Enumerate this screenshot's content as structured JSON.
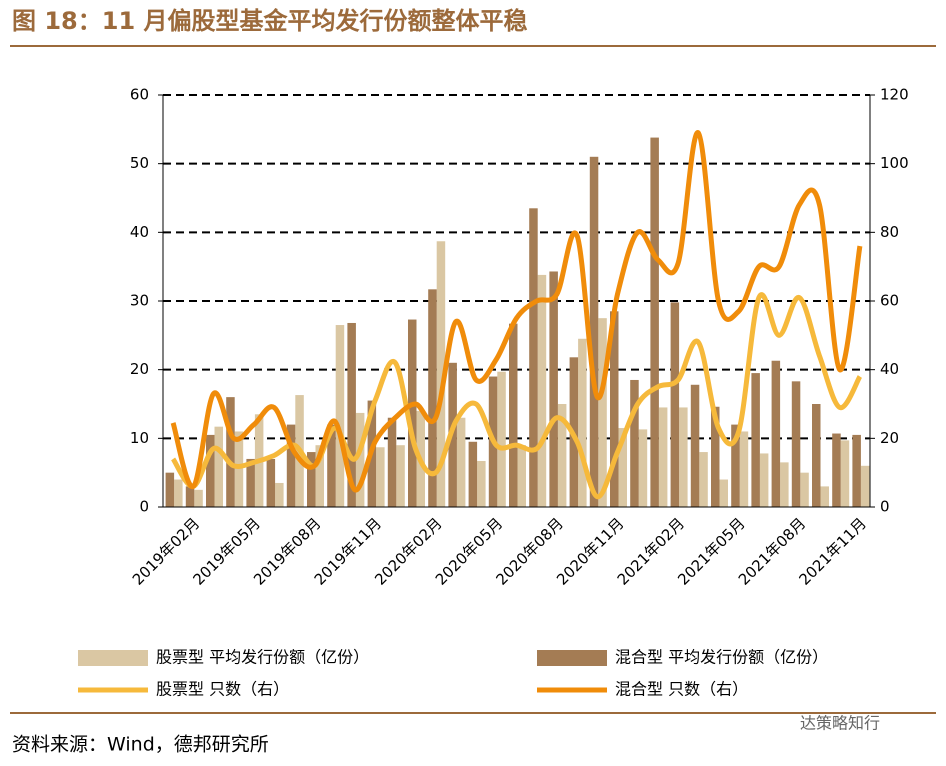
{
  "title": "图 18：11 月偏股型基金平均发行份额整体平稳",
  "source": "资料来源：Wind，德邦研究所",
  "watermark": "达策略知行",
  "chart_data": {
    "type": "bar_line",
    "categories": [
      null,
      "2019年02月",
      null,
      null,
      "2019年05月",
      null,
      null,
      "2019年08月",
      null,
      null,
      "2019年11月",
      null,
      null,
      "2020年02月",
      null,
      null,
      "2020年05月",
      null,
      null,
      "2020年08月",
      null,
      null,
      "2020年11月",
      null,
      null,
      "2021年02月",
      null,
      null,
      "2021年05月",
      null,
      null,
      "2021年08月",
      null,
      null,
      "2021年11月"
    ],
    "series": [
      {
        "name": "股票型 平均发行份额（亿份）",
        "kind": "bar",
        "axis": "y",
        "color": "#dac7a3",
        "values": [
          4,
          2.5,
          11.7,
          11,
          13.5,
          3.5,
          16.3,
          9,
          26.5,
          13.7,
          8.7,
          9,
          14,
          38.7,
          13,
          6.7,
          19.7,
          9,
          33.8,
          15,
          24.5,
          27.5,
          11.5,
          11.3,
          14.5,
          14.5,
          8,
          4,
          11,
          7.8,
          6.5,
          5,
          3,
          9.7,
          6
        ]
      },
      {
        "name": "混合型 平均发行份额（亿份）",
        "kind": "bar",
        "axis": "y",
        "color": "#a47c54",
        "values": [
          5,
          3,
          10.5,
          16,
          7,
          7,
          12,
          8,
          12,
          26.8,
          15.5,
          13,
          27.3,
          31.7,
          21,
          9.5,
          19,
          26.7,
          43.5,
          34.3,
          21.8,
          51,
          28.5,
          18.5,
          53.8,
          29.8,
          17.8,
          14.6,
          12,
          19.5,
          21.3,
          18.3,
          15,
          10.7,
          10.5
        ]
      },
      {
        "name": "股票型 只数（右）",
        "kind": "line",
        "axis": "y2",
        "color": "#f6b93b",
        "values": [
          14,
          6,
          17,
          12,
          13,
          15,
          18,
          12,
          23,
          14,
          31,
          42,
          17,
          10,
          25,
          30,
          18,
          18,
          17,
          26,
          19,
          3,
          16,
          30,
          35,
          37,
          48,
          23,
          22,
          61,
          50,
          61,
          44,
          29,
          38
        ]
      },
      {
        "name": "混合型 只数（右）",
        "kind": "line",
        "axis": "y2",
        "color": "#f08c0a",
        "values": [
          24.5,
          6,
          33,
          20,
          24,
          29,
          16,
          12,
          25,
          5,
          19,
          26,
          30,
          26,
          54,
          37,
          43,
          55,
          60,
          62,
          79,
          32,
          62,
          80,
          72,
          71,
          109,
          60,
          57,
          70,
          70,
          88,
          88,
          40,
          76
        ]
      }
    ],
    "ylim": [
      0,
      60
    ],
    "yticks": [
      0,
      10,
      20,
      30,
      40,
      50,
      60
    ],
    "y2lim": [
      0,
      120
    ],
    "y2ticks": [
      0,
      20,
      40,
      60,
      80,
      100,
      120
    ],
    "grid": true
  }
}
